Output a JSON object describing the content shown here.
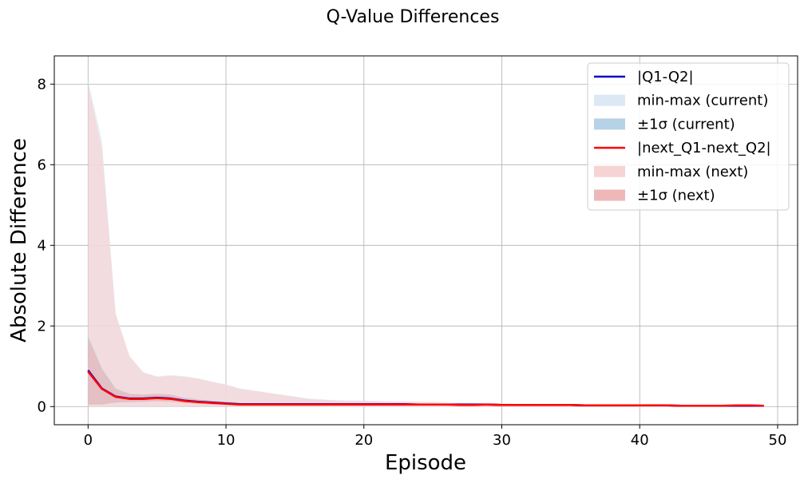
{
  "chart_data": {
    "type": "line",
    "title": "Q-Value Differences",
    "xlabel": "Episode",
    "ylabel": "Absolute Difference",
    "xlim": [
      -2.45,
      51.45
    ],
    "ylim": [
      -0.45,
      8.7
    ],
    "xticks": [
      0,
      10,
      20,
      30,
      40,
      50
    ],
    "yticks": [
      0,
      2,
      4,
      6,
      8
    ],
    "grid": true,
    "legend_position": "top-right",
    "x": [
      0,
      1,
      2,
      3,
      4,
      5,
      6,
      7,
      8,
      9,
      10,
      11,
      12,
      13,
      14,
      15,
      16,
      17,
      18,
      19,
      20,
      21,
      22,
      23,
      24,
      25,
      26,
      27,
      28,
      29,
      30,
      31,
      32,
      33,
      34,
      35,
      36,
      37,
      38,
      39,
      40,
      41,
      42,
      43,
      44,
      45,
      46,
      47,
      48,
      49
    ],
    "series": [
      {
        "name": "|Q1-Q2|",
        "role": "mean",
        "color": "#0000cc",
        "values": [
          0.9,
          0.45,
          0.25,
          0.2,
          0.2,
          0.22,
          0.2,
          0.15,
          0.12,
          0.1,
          0.08,
          0.06,
          0.06,
          0.06,
          0.06,
          0.06,
          0.06,
          0.06,
          0.06,
          0.06,
          0.06,
          0.06,
          0.06,
          0.06,
          0.05,
          0.05,
          0.05,
          0.05,
          0.05,
          0.05,
          0.04,
          0.04,
          0.04,
          0.04,
          0.04,
          0.04,
          0.03,
          0.03,
          0.03,
          0.03,
          0.03,
          0.03,
          0.03,
          0.02,
          0.02,
          0.02,
          0.02,
          0.02,
          0.02,
          0.02
        ]
      },
      {
        "name": "min-max (current)",
        "role": "minmax-band",
        "color": "#dce8f3",
        "lower": [
          0,
          0,
          0,
          0,
          0,
          0,
          0,
          0,
          0,
          0,
          0,
          0,
          0,
          0,
          0,
          0,
          0,
          0,
          0,
          0,
          0,
          0,
          0,
          0,
          0,
          0,
          0,
          0,
          0,
          0,
          0,
          0,
          0,
          0,
          0,
          0,
          0,
          0,
          0,
          0,
          0,
          0,
          0,
          0,
          0,
          0,
          0,
          0,
          0,
          0
        ],
        "upper": [
          8.1,
          6.6,
          2.3,
          1.25,
          0.85,
          0.75,
          0.78,
          0.75,
          0.7,
          0.62,
          0.55,
          0.45,
          0.4,
          0.35,
          0.3,
          0.25,
          0.2,
          0.18,
          0.16,
          0.15,
          0.15,
          0.14,
          0.13,
          0.13,
          0.12,
          0.12,
          0.1,
          0.1,
          0.09,
          0.1,
          0.08,
          0.07,
          0.07,
          0.06,
          0.06,
          0.06,
          0.05,
          0.05,
          0.05,
          0.06,
          0.06,
          0.07,
          0.06,
          0.05,
          0.04,
          0.04,
          0.04,
          0.05,
          0.05,
          0.04
        ]
      },
      {
        "name": "±1σ (current)",
        "role": "std-band",
        "color": "#b6d2e6",
        "lower": [
          0.05,
          0.05,
          0.1,
          0.12,
          0.13,
          0.14,
          0.13,
          0.1,
          0.08,
          0.06,
          0.05,
          0.04,
          0.04,
          0.04,
          0.04,
          0.04,
          0.04,
          0.04,
          0.04,
          0.04,
          0.04,
          0.04,
          0.04,
          0.04,
          0.03,
          0.03,
          0.03,
          0.03,
          0.03,
          0.03,
          0.02,
          0.02,
          0.02,
          0.02,
          0.02,
          0.02,
          0.02,
          0.02,
          0.02,
          0.02,
          0.02,
          0.02,
          0.02,
          0.01,
          0.01,
          0.01,
          0.01,
          0.01,
          0.01,
          0.01
        ],
        "upper": [
          1.75,
          0.95,
          0.45,
          0.32,
          0.3,
          0.32,
          0.3,
          0.22,
          0.18,
          0.15,
          0.12,
          0.09,
          0.08,
          0.08,
          0.08,
          0.08,
          0.08,
          0.08,
          0.08,
          0.08,
          0.08,
          0.08,
          0.08,
          0.08,
          0.07,
          0.07,
          0.07,
          0.07,
          0.07,
          0.07,
          0.06,
          0.06,
          0.06,
          0.06,
          0.06,
          0.06,
          0.05,
          0.05,
          0.05,
          0.05,
          0.05,
          0.05,
          0.05,
          0.04,
          0.04,
          0.04,
          0.04,
          0.04,
          0.04,
          0.04
        ]
      },
      {
        "name": "|next_Q1-next_Q2|",
        "role": "mean",
        "color": "#ff0000",
        "values": [
          0.87,
          0.44,
          0.24,
          0.19,
          0.19,
          0.21,
          0.19,
          0.14,
          0.11,
          0.09,
          0.07,
          0.05,
          0.05,
          0.05,
          0.05,
          0.05,
          0.05,
          0.05,
          0.05,
          0.05,
          0.05,
          0.05,
          0.05,
          0.05,
          0.05,
          0.05,
          0.05,
          0.04,
          0.04,
          0.05,
          0.04,
          0.04,
          0.04,
          0.04,
          0.04,
          0.04,
          0.03,
          0.03,
          0.03,
          0.03,
          0.03,
          0.03,
          0.03,
          0.02,
          0.02,
          0.02,
          0.02,
          0.03,
          0.03,
          0.02
        ]
      },
      {
        "name": "min-max (next)",
        "role": "minmax-band",
        "color": "#f6d4d4",
        "lower": [
          0,
          0,
          0,
          0,
          0,
          0,
          0,
          0,
          0,
          0,
          0,
          0,
          0,
          0,
          0,
          0,
          0,
          0,
          0,
          0,
          0,
          0,
          0,
          0,
          0,
          0,
          0,
          0,
          0,
          0,
          0,
          0,
          0,
          0,
          0,
          0,
          0,
          0,
          0,
          0,
          0,
          0,
          0,
          0,
          0,
          0,
          0,
          0,
          0,
          0
        ],
        "upper": [
          8.0,
          6.4,
          2.3,
          1.25,
          0.85,
          0.73,
          0.76,
          0.74,
          0.69,
          0.61,
          0.54,
          0.44,
          0.39,
          0.34,
          0.29,
          0.24,
          0.19,
          0.17,
          0.15,
          0.14,
          0.14,
          0.13,
          0.12,
          0.12,
          0.11,
          0.1,
          0.09,
          0.09,
          0.08,
          0.09,
          0.07,
          0.06,
          0.06,
          0.05,
          0.05,
          0.05,
          0.04,
          0.04,
          0.04,
          0.05,
          0.05,
          0.06,
          0.05,
          0.04,
          0.03,
          0.03,
          0.03,
          0.04,
          0.04,
          0.03
        ]
      },
      {
        "name": "±1σ (next)",
        "role": "std-band",
        "color": "#eeb8b8",
        "lower": [
          0.05,
          0.05,
          0.1,
          0.11,
          0.12,
          0.13,
          0.12,
          0.09,
          0.07,
          0.05,
          0.04,
          0.03,
          0.03,
          0.03,
          0.03,
          0.03,
          0.03,
          0.03,
          0.03,
          0.03,
          0.03,
          0.03,
          0.03,
          0.03,
          0.03,
          0.03,
          0.03,
          0.02,
          0.02,
          0.03,
          0.02,
          0.02,
          0.02,
          0.02,
          0.02,
          0.02,
          0.01,
          0.01,
          0.01,
          0.01,
          0.01,
          0.01,
          0.01,
          0.01,
          0.01,
          0.01,
          0.01,
          0.01,
          0.01,
          0.01
        ],
        "upper": [
          1.7,
          0.92,
          0.43,
          0.31,
          0.29,
          0.31,
          0.29,
          0.21,
          0.17,
          0.14,
          0.11,
          0.08,
          0.07,
          0.07,
          0.07,
          0.07,
          0.07,
          0.07,
          0.07,
          0.07,
          0.07,
          0.07,
          0.07,
          0.07,
          0.07,
          0.07,
          0.07,
          0.06,
          0.06,
          0.07,
          0.06,
          0.06,
          0.06,
          0.06,
          0.06,
          0.06,
          0.05,
          0.05,
          0.05,
          0.05,
          0.05,
          0.05,
          0.05,
          0.04,
          0.04,
          0.04,
          0.04,
          0.05,
          0.05,
          0.04
        ]
      }
    ],
    "legend": [
      {
        "label": "|Q1-Q2|",
        "kind": "line",
        "color": "#0000cc"
      },
      {
        "label": "min-max (current)",
        "kind": "patch",
        "color": "#dce8f3"
      },
      {
        "label": "±1σ (current)",
        "kind": "patch",
        "color": "#b6d2e6"
      },
      {
        "label": "|next_Q1-next_Q2|",
        "kind": "line",
        "color": "#ff0000"
      },
      {
        "label": "min-max (next)",
        "kind": "patch",
        "color": "#f6d4d4"
      },
      {
        "label": "±1σ (next)",
        "kind": "patch",
        "color": "#eeb8b8"
      }
    ]
  }
}
